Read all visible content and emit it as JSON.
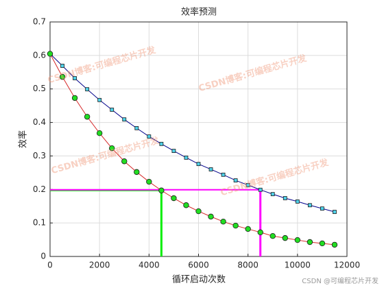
{
  "chart_data": {
    "type": "line",
    "title": "效率预测",
    "x_label": "循环启动次数",
    "y_label": "效率",
    "x": [
      0,
      500,
      1000,
      1500,
      2000,
      2500,
      3000,
      3500,
      4000,
      4500,
      5000,
      5500,
      6000,
      6500,
      7000,
      7500,
      8000,
      8500,
      9000,
      9500,
      10000,
      10500,
      11000,
      11500
    ],
    "series": [
      {
        "color": "#00008b",
        "marker": "square",
        "marker_color": "#4fd0e8",
        "values": [
          0.605,
          0.569,
          0.532,
          0.499,
          0.467,
          0.438,
          0.409,
          0.383,
          0.358,
          0.336,
          0.315,
          0.295,
          0.276,
          0.26,
          0.244,
          0.227,
          0.213,
          0.199,
          0.186,
          0.174,
          0.164,
          0.153,
          0.143,
          0.133
        ]
      },
      {
        "color": "#d62728",
        "marker": "circle",
        "marker_color": "#22dd22",
        "values": [
          0.605,
          0.536,
          0.473,
          0.417,
          0.368,
          0.323,
          0.284,
          0.252,
          0.223,
          0.197,
          0.174,
          0.153,
          0.135,
          0.119,
          0.104,
          0.092,
          0.082,
          0.072,
          0.061,
          0.055,
          0.049,
          0.043,
          0.039,
          0.035
        ]
      }
    ],
    "guides": [
      {
        "x": 4500,
        "y": 0.197,
        "color": "#00ee00"
      },
      {
        "x": 8500,
        "y": 0.199,
        "color": "#ff00ff"
      }
    ],
    "xlim": [
      0,
      12000
    ],
    "xticks": [
      0,
      2000,
      4000,
      6000,
      8000,
      10000,
      12000
    ],
    "ylim": [
      0,
      0.7
    ],
    "yticks": [
      0,
      0.1,
      0.2,
      0.3,
      0.4,
      0.5,
      0.6,
      0.7
    ],
    "grid": true,
    "watermarks": [
      "CSDN博客:可编程芯片开发",
      "CSDN博客:可编程芯片开发",
      "CSDN博客:可编程芯片开发",
      "CSDN博客:可编程芯片开发"
    ],
    "credit": "CSDN @可编程芯片开发"
  }
}
